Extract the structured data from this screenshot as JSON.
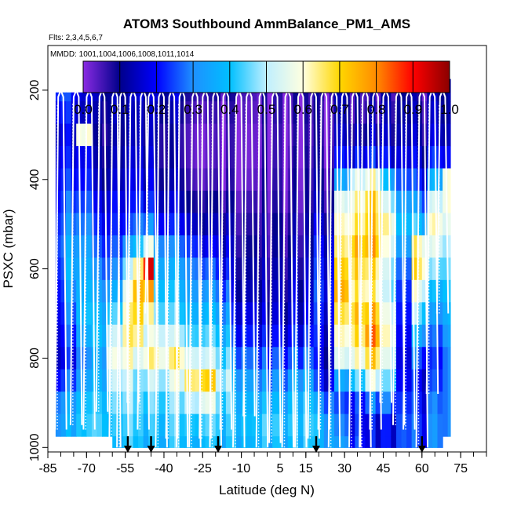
{
  "chart_data": {
    "type": "heatmap",
    "title": "ATOM3 Southbound AmmBalance_PM1_AMS",
    "flights_note": "Flts: 2,3,4,5,6,7",
    "dates_note": "MMDD: 1001,1004,1006,1008,1011,1014",
    "xlabel": "Latitude (deg N)",
    "ylabel": "PSXC (mbar)",
    "xlim": [
      -85,
      85
    ],
    "ylim": [
      1010,
      100
    ],
    "x_tick_labels": [
      "-85",
      "-70",
      "-55",
      "-40",
      "-25",
      "-10",
      "5",
      "15",
      "30",
      "45",
      "60",
      "75"
    ],
    "x_ticks": [
      -85,
      -70,
      -55,
      -40,
      -25,
      -10,
      5,
      15,
      30,
      45,
      60,
      75
    ],
    "y_tick_labels": [
      "200",
      "400",
      "600",
      "800",
      "1000"
    ],
    "y_ticks": [
      200,
      400,
      600,
      800,
      1000
    ],
    "colorbar": {
      "range": [
        0.0,
        1.0
      ],
      "tick_labels": [
        "0.0",
        "0.1",
        "0.2",
        "0.3",
        "0.4",
        "0.5",
        "0.6",
        "0.7",
        "0.8",
        "0.9",
        "1.0"
      ],
      "colors": [
        "#8a2be2",
        "#00008b",
        "#0000ff",
        "#1e90ff",
        "#00bfff",
        "#bfefff",
        "#ffffe0",
        "#ffd700",
        "#ff8c00",
        "#ff0000",
        "#8b0000"
      ]
    },
    "lat_bin_width": 2,
    "pressure_levels": [
      200,
      250,
      300,
      350,
      400,
      450,
      500,
      550,
      600,
      650,
      700,
      750,
      800,
      850,
      900,
      950,
      1000
    ],
    "profile_latitudes": [
      -80,
      -74,
      -69,
      -64,
      -59,
      -56,
      -52,
      -48,
      -45,
      -41,
      -37,
      -33,
      -28,
      -24,
      -20,
      -16,
      -11,
      -7,
      -2,
      3,
      8,
      13,
      18,
      22,
      26,
      30,
      34,
      38,
      42,
      46,
      51,
      55,
      60,
      64,
      68
    ],
    "profile_bottoms": [
      960,
      950,
      960,
      920,
      1000,
      1000,
      900,
      960,
      700,
      1000,
      980,
      1000,
      1000,
      980,
      1000,
      960,
      1000,
      930,
      1000,
      990,
      1000,
      1000,
      980,
      960,
      1000,
      800,
      1000,
      1000,
      960,
      900,
      950,
      960,
      1000,
      880,
      700
    ],
    "surface_arrows": [
      -54,
      -45,
      -19,
      19,
      60
    ],
    "segments": [
      {
        "lat": [
          -82,
          -78
        ],
        "profile": [
          0.22,
          0.18,
          0.14,
          0.16,
          0.18,
          0.2,
          0.22,
          0.24,
          0.22,
          0.2,
          0.18,
          0.16,
          0.14,
          0.2,
          0.28,
          0.3,
          0.32
        ]
      },
      {
        "lat": [
          -78,
          -74
        ],
        "profile": [
          0.2,
          0.18,
          0.15,
          0.17,
          0.2,
          0.24,
          0.28,
          0.32,
          0.34,
          0.3,
          0.26,
          0.22,
          0.18,
          0.24,
          0.32,
          0.34,
          0.32
        ]
      },
      {
        "lat": [
          -74,
          -68
        ],
        "profile": [
          0.18,
          0.16,
          0.6,
          0.2,
          0.22,
          0.26,
          0.3,
          0.34,
          0.36,
          0.38,
          0.4,
          0.36,
          0.3,
          0.34,
          0.4,
          0.42,
          0.4
        ]
      },
      {
        "lat": [
          -68,
          -62
        ],
        "profile": [
          0.16,
          0.14,
          0.12,
          0.14,
          0.16,
          0.2,
          0.24,
          0.28,
          0.32,
          0.36,
          0.4,
          0.42,
          0.38,
          0.4,
          0.44,
          0.46,
          0.44
        ]
      },
      {
        "lat": [
          -62,
          -56
        ],
        "profile": [
          0.12,
          0.12,
          0.1,
          0.12,
          0.14,
          0.18,
          0.2,
          0.24,
          0.28,
          0.34,
          0.42,
          0.5,
          0.56,
          0.5,
          0.44,
          0.4,
          0.36
        ]
      },
      {
        "lat": [
          -56,
          -52
        ],
        "profile": [
          0.1,
          0.1,
          0.1,
          0.12,
          0.14,
          0.16,
          0.2,
          0.3,
          0.45,
          0.55,
          0.6,
          0.62,
          0.58,
          0.5,
          0.46,
          0.42,
          0.4
        ]
      },
      {
        "lat": [
          -52,
          -48
        ],
        "profile": [
          0.12,
          0.1,
          0.1,
          0.12,
          0.14,
          0.18,
          0.24,
          0.36,
          0.6,
          0.7,
          0.66,
          0.6,
          0.5,
          0.42,
          0.4,
          0.38,
          0.36
        ]
      },
      {
        "lat": [
          -48,
          -44
        ],
        "profile": [
          0.14,
          0.12,
          0.12,
          0.14,
          0.16,
          0.2,
          0.3,
          0.55,
          0.9,
          0.75,
          0.6,
          0.55,
          0.62,
          0.5,
          0.44,
          0.4,
          0.38
        ]
      },
      {
        "lat": [
          -44,
          -38
        ],
        "profile": [
          0.16,
          0.14,
          0.12,
          0.12,
          0.14,
          0.18,
          0.24,
          0.34,
          0.4,
          0.44,
          0.48,
          0.56,
          0.62,
          0.52,
          0.46,
          0.42,
          0.4
        ]
      },
      {
        "lat": [
          -38,
          -32
        ],
        "profile": [
          0.14,
          0.12,
          0.1,
          0.1,
          0.12,
          0.16,
          0.22,
          0.3,
          0.36,
          0.4,
          0.44,
          0.52,
          0.64,
          0.56,
          0.48,
          0.44,
          0.42
        ]
      },
      {
        "lat": [
          -32,
          -26
        ],
        "profile": [
          0.12,
          0.1,
          0.08,
          0.08,
          0.1,
          0.14,
          0.2,
          0.28,
          0.34,
          0.38,
          0.42,
          0.48,
          0.58,
          0.7,
          0.55,
          0.46,
          0.42
        ]
      },
      {
        "lat": [
          -26,
          -20
        ],
        "profile": [
          0.1,
          0.08,
          0.06,
          0.06,
          0.08,
          0.12,
          0.16,
          0.22,
          0.3,
          0.36,
          0.42,
          0.48,
          0.56,
          0.74,
          0.6,
          0.48,
          0.44
        ]
      },
      {
        "lat": [
          -20,
          -14
        ],
        "profile": [
          0.08,
          0.06,
          0.05,
          0.05,
          0.06,
          0.1,
          0.14,
          0.18,
          0.22,
          0.28,
          0.34,
          0.4,
          0.46,
          0.52,
          0.46,
          0.42,
          0.4
        ]
      },
      {
        "lat": [
          -14,
          -4
        ],
        "profile": [
          0.06,
          0.05,
          0.04,
          0.04,
          0.05,
          0.08,
          0.1,
          0.12,
          0.14,
          0.16,
          0.2,
          0.24,
          0.3,
          0.36,
          0.4,
          0.42,
          0.4
        ]
      },
      {
        "lat": [
          -4,
          8
        ],
        "profile": [
          0.04,
          0.04,
          0.03,
          0.03,
          0.04,
          0.05,
          0.07,
          0.08,
          0.1,
          0.12,
          0.14,
          0.18,
          0.24,
          0.3,
          0.36,
          0.4,
          0.38
        ]
      },
      {
        "lat": [
          8,
          18
        ],
        "profile": [
          0.04,
          0.04,
          0.03,
          0.04,
          0.05,
          0.06,
          0.08,
          0.1,
          0.12,
          0.14,
          0.16,
          0.2,
          0.26,
          0.34,
          0.4,
          0.42,
          0.4
        ]
      },
      {
        "lat": [
          18,
          26
        ],
        "profile": [
          0.06,
          0.05,
          0.05,
          0.06,
          0.08,
          0.1,
          0.14,
          0.18,
          0.2,
          0.22,
          0.2,
          0.18,
          0.16,
          0.2,
          0.3,
          0.36,
          0.36
        ]
      },
      {
        "lat": [
          26,
          32
        ],
        "profile": [
          0.08,
          0.08,
          0.1,
          0.16,
          0.3,
          0.5,
          0.56,
          0.6,
          0.66,
          0.7,
          0.62,
          0.56,
          0.5,
          0.3,
          0.2,
          0.24,
          0.28
        ]
      },
      {
        "lat": [
          32,
          38
        ],
        "profile": [
          0.08,
          0.08,
          0.12,
          0.2,
          0.55,
          0.62,
          0.66,
          0.74,
          0.7,
          0.66,
          0.72,
          0.68,
          0.6,
          0.44,
          0.24,
          0.22,
          0.24
        ]
      },
      {
        "lat": [
          38,
          44
        ],
        "profile": [
          0.08,
          0.1,
          0.14,
          0.22,
          0.6,
          0.7,
          0.72,
          0.76,
          0.68,
          0.64,
          0.74,
          0.8,
          0.7,
          0.56,
          0.3,
          0.2,
          0.2
        ]
      },
      {
        "lat": [
          44,
          50
        ],
        "profile": [
          0.08,
          0.1,
          0.12,
          0.18,
          0.36,
          0.5,
          0.6,
          0.56,
          0.5,
          0.48,
          0.54,
          0.58,
          0.52,
          0.42,
          0.26,
          0.18,
          0.18
        ]
      },
      {
        "lat": [
          50,
          56
        ],
        "profile": [
          0.06,
          0.08,
          0.1,
          0.14,
          0.22,
          0.3,
          0.36,
          0.3,
          0.24,
          0.2,
          0.18,
          0.16,
          0.14,
          0.16,
          0.2,
          0.22,
          0.22
        ]
      },
      {
        "lat": [
          56,
          62
        ],
        "profile": [
          0.08,
          0.1,
          0.12,
          0.16,
          0.22,
          0.3,
          0.4,
          0.62,
          0.66,
          0.56,
          0.46,
          0.36,
          0.26,
          0.2,
          0.22,
          0.24,
          0.24
        ]
      },
      {
        "lat": [
          62,
          68
        ],
        "profile": [
          0.1,
          0.12,
          0.14,
          0.2,
          0.34,
          0.5,
          0.58,
          0.52,
          0.44,
          0.36,
          0.3,
          0.24,
          0.2,
          0.22,
          0.26,
          0.28,
          0.28
        ]
      },
      {
        "lat": [
          68,
          71
        ],
        "profile": [
          0.12,
          0.12,
          0.14,
          0.2,
          0.6,
          0.6,
          0.56,
          0.5,
          0.46,
          0.42,
          0.38,
          0.34,
          0.3,
          0.3,
          0.3,
          0.3,
          0.3
        ]
      }
    ]
  }
}
